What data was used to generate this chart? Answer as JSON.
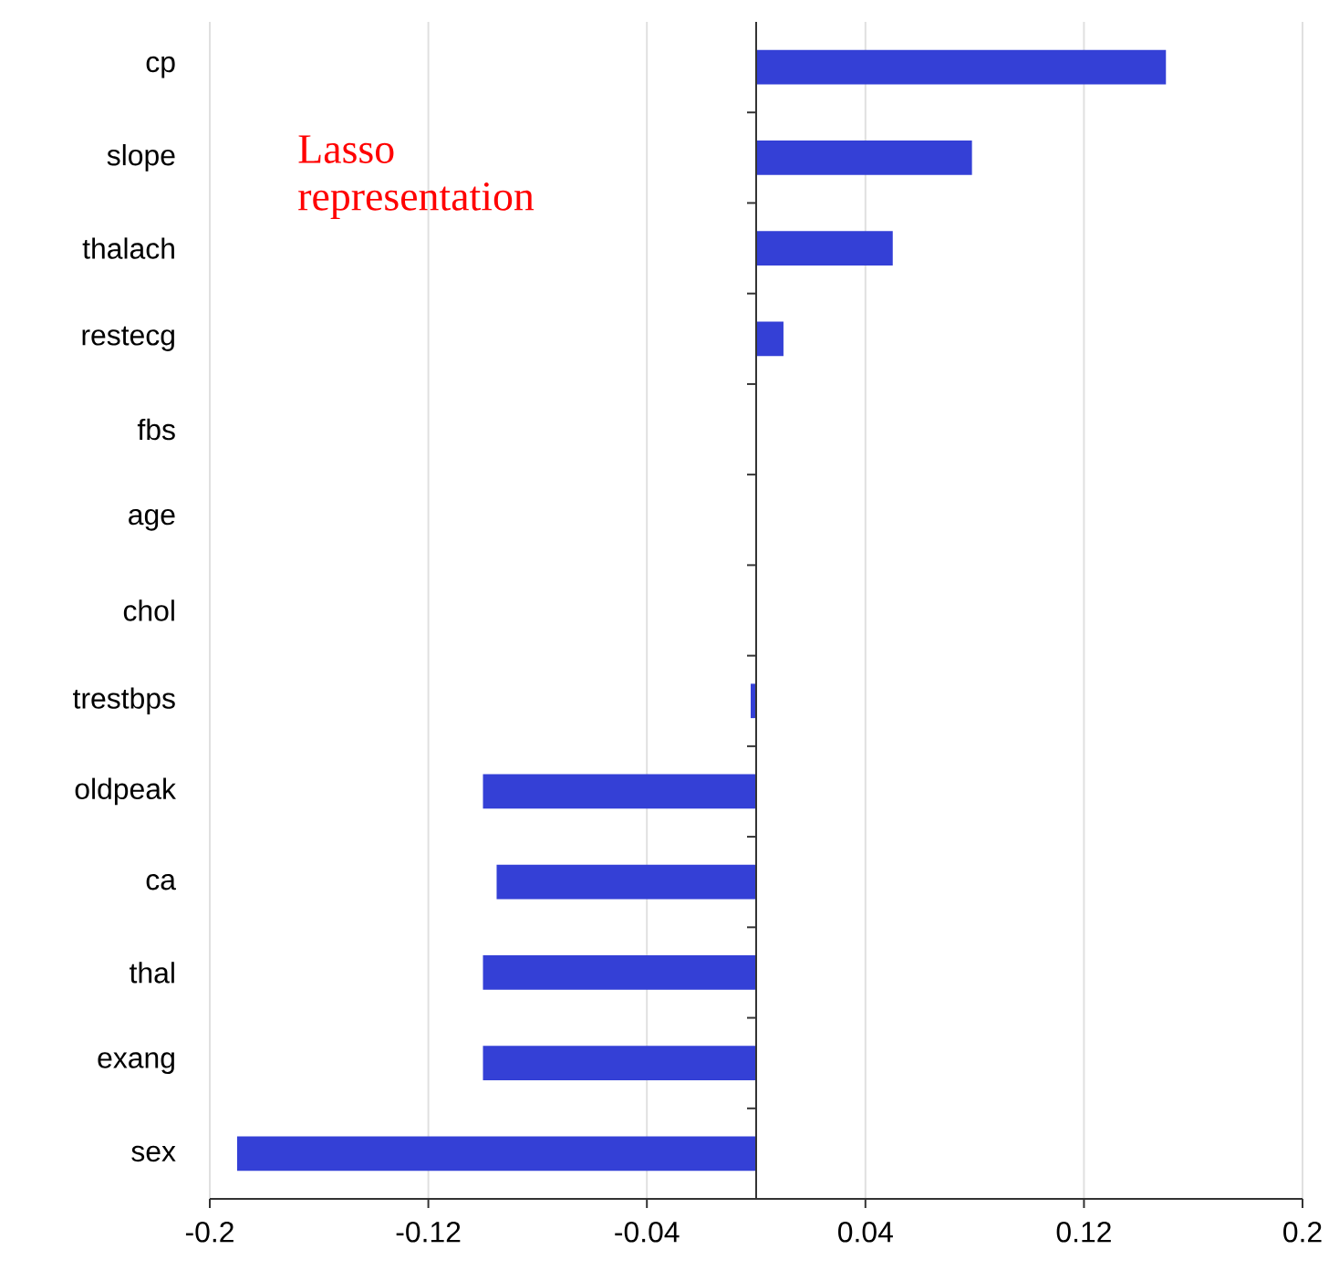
{
  "chart_data": {
    "type": "bar",
    "orientation": "horizontal",
    "categories": [
      "cp",
      "slope",
      "thalach",
      "restecg",
      "fbs",
      "age",
      "chol",
      "trestbps",
      "oldpeak",
      "ca",
      "thal",
      "exang",
      "sex"
    ],
    "values": [
      0.15,
      0.079,
      0.05,
      0.01,
      0,
      0,
      0,
      -0.002,
      -0.1,
      -0.095,
      -0.1,
      -0.1,
      -0.19
    ],
    "color": "#3440d6",
    "xlim": [
      -0.2,
      0.2
    ],
    "xticks": [
      -0.2,
      -0.12,
      -0.04,
      0.04,
      0.12,
      0.2
    ],
    "grid": "x",
    "annotations": [
      "Lasso representation"
    ]
  }
}
